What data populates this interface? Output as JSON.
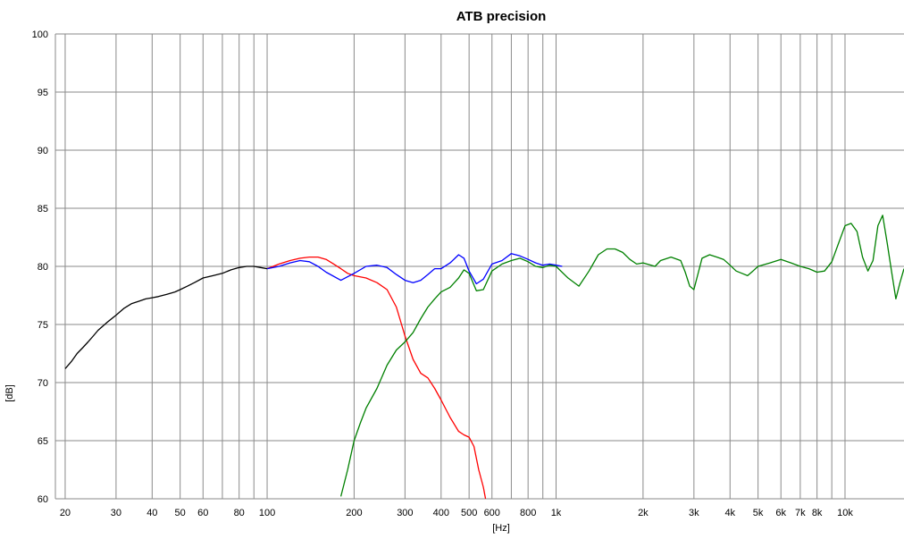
{
  "chart_data": {
    "type": "line",
    "title": "ATB precision",
    "xlabel": "[Hz]",
    "ylabel": "[dB]",
    "x_scale": "log",
    "xlim": [
      18.5,
      16000
    ],
    "ylim": [
      60,
      100
    ],
    "grid": true,
    "y_ticks": [
      {
        "value": 100,
        "label": "100"
      },
      {
        "value": 95,
        "label": "95"
      },
      {
        "value": 90,
        "label": "90"
      },
      {
        "value": 85,
        "label": "85"
      },
      {
        "value": 80,
        "label": "80"
      },
      {
        "value": 75,
        "label": "75"
      },
      {
        "value": 70,
        "label": "70"
      },
      {
        "value": 65,
        "label": "65"
      },
      {
        "value": 60,
        "label": "60"
      }
    ],
    "x_ticks": [
      {
        "value": 20,
        "label": "20"
      },
      {
        "value": 30,
        "label": "30"
      },
      {
        "value": 40,
        "label": "40"
      },
      {
        "value": 50,
        "label": "50"
      },
      {
        "value": 60,
        "label": "60"
      },
      {
        "value": 70,
        "label": ""
      },
      {
        "value": 80,
        "label": "80"
      },
      {
        "value": 90,
        "label": ""
      },
      {
        "value": 100,
        "label": "100"
      },
      {
        "value": 200,
        "label": "200"
      },
      {
        "value": 300,
        "label": "300"
      },
      {
        "value": 400,
        "label": "400"
      },
      {
        "value": 500,
        "label": "500"
      },
      {
        "value": 600,
        "label": "600"
      },
      {
        "value": 700,
        "label": ""
      },
      {
        "value": 800,
        "label": "800"
      },
      {
        "value": 900,
        "label": ""
      },
      {
        "value": 1000,
        "label": "1k"
      },
      {
        "value": 2000,
        "label": "2k"
      },
      {
        "value": 3000,
        "label": "3k"
      },
      {
        "value": 4000,
        "label": "4k"
      },
      {
        "value": 5000,
        "label": "5k"
      },
      {
        "value": 6000,
        "label": "6k"
      },
      {
        "value": 7000,
        "label": "7k"
      },
      {
        "value": 8000,
        "label": "8k"
      },
      {
        "value": 9000,
        "label": ""
      },
      {
        "value": 10000,
        "label": "10k"
      }
    ],
    "series": [
      {
        "color": "#ff0000",
        "x": [
          100,
          110,
          120,
          130,
          140,
          150,
          160,
          170,
          180,
          190,
          200,
          220,
          240,
          260,
          280,
          300,
          320,
          340,
          360,
          380,
          400,
          430,
          460,
          480,
          500,
          520,
          540,
          560,
          580
        ],
        "y": [
          79.8,
          80.2,
          80.5,
          80.7,
          80.8,
          80.8,
          80.6,
          80.2,
          79.8,
          79.4,
          79.2,
          79.0,
          78.6,
          78.0,
          76.5,
          74.0,
          72.0,
          70.8,
          70.4,
          69.5,
          68.5,
          67.0,
          65.8,
          65.5,
          65.3,
          64.5,
          62.5,
          61.0,
          59.0
        ]
      },
      {
        "color": "#0000ff",
        "x": [
          100,
          110,
          120,
          130,
          140,
          150,
          160,
          180,
          200,
          220,
          240,
          260,
          280,
          300,
          320,
          340,
          360,
          380,
          400,
          430,
          460,
          480,
          500,
          530,
          560,
          600,
          650,
          700,
          750,
          800,
          850,
          900,
          950,
          1000,
          1050
        ],
        "y": [
          79.8,
          80.0,
          80.3,
          80.5,
          80.4,
          80.0,
          79.5,
          78.8,
          79.4,
          80.0,
          80.1,
          79.9,
          79.3,
          78.8,
          78.6,
          78.8,
          79.3,
          79.8,
          79.8,
          80.3,
          81.0,
          80.7,
          79.6,
          78.5,
          78.9,
          80.2,
          80.5,
          81.1,
          80.9,
          80.6,
          80.3,
          80.1,
          80.2,
          80.1,
          80.0
        ]
      },
      {
        "color": "#008000",
        "x": [
          180,
          190,
          200,
          210,
          220,
          240,
          260,
          280,
          300,
          320,
          340,
          360,
          380,
          400,
          430,
          460,
          480,
          500,
          530,
          560,
          600,
          650,
          700,
          750,
          800,
          850,
          900,
          950,
          1000,
          1100,
          1200,
          1300,
          1400,
          1500,
          1600,
          1700,
          1800,
          1900,
          2000,
          2200,
          2300,
          2500,
          2700,
          2800,
          2900,
          3000,
          3200,
          3400,
          3600,
          3800,
          4000,
          4200,
          4400,
          4600,
          4800,
          5000,
          5500,
          6000,
          6500,
          7000,
          7500,
          8000,
          8500,
          9000,
          9500,
          10000,
          10500,
          11000,
          11500,
          12000,
          12500,
          13000,
          13500,
          14000,
          14500,
          15000,
          15500,
          16000
        ],
        "y": [
          60.2,
          62.5,
          65.0,
          66.5,
          67.8,
          69.5,
          71.5,
          72.8,
          73.5,
          74.3,
          75.5,
          76.5,
          77.2,
          77.8,
          78.2,
          79.0,
          79.7,
          79.4,
          77.9,
          78.0,
          79.6,
          80.2,
          80.5,
          80.7,
          80.4,
          80.0,
          79.9,
          80.1,
          80.0,
          79.0,
          78.3,
          79.6,
          81.0,
          81.5,
          81.5,
          81.2,
          80.6,
          80.2,
          80.3,
          80.0,
          80.5,
          80.8,
          80.5,
          79.5,
          78.3,
          78.0,
          80.7,
          81.0,
          80.8,
          80.6,
          80.1,
          79.6,
          79.4,
          79.2,
          79.6,
          80.0,
          80.3,
          80.6,
          80.3,
          80.0,
          79.8,
          79.5,
          79.6,
          80.4,
          82.0,
          83.5,
          83.7,
          83.0,
          80.8,
          79.6,
          80.5,
          83.5,
          84.4,
          82.0,
          79.5,
          77.2,
          78.6,
          79.8
        ]
      },
      {
        "color": "#000000",
        "x": [
          20,
          21,
          22,
          23,
          24,
          25,
          26,
          28,
          30,
          32,
          34,
          36,
          38,
          40,
          42,
          45,
          48,
          50,
          53,
          56,
          60,
          65,
          70,
          75,
          80,
          85,
          90,
          95,
          100
        ],
        "y": [
          71.2,
          71.8,
          72.5,
          73.0,
          73.5,
          74.0,
          74.5,
          75.2,
          75.8,
          76.4,
          76.8,
          77.0,
          77.2,
          77.3,
          77.4,
          77.6,
          77.8,
          78.0,
          78.3,
          78.6,
          79.0,
          79.2,
          79.4,
          79.7,
          79.9,
          80.0,
          80.0,
          79.9,
          79.8
        ]
      }
    ]
  }
}
